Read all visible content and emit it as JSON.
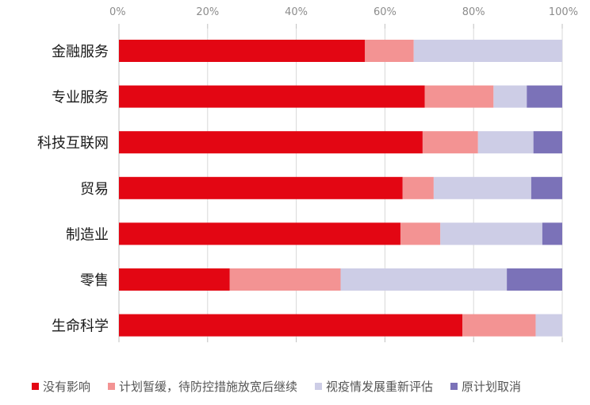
{
  "chart_data": {
    "type": "bar",
    "orientation": "horizontal",
    "stacked": true,
    "categories": [
      "金融服务",
      "专业服务",
      "科技互联网",
      "贸易",
      "制造业",
      "零售",
      "生命科学"
    ],
    "series": [
      {
        "name": "没有影响",
        "color": "#E30613",
        "values": [
          55.5,
          69,
          68.5,
          64,
          63.5,
          25,
          77.5
        ]
      },
      {
        "name": "计划暂缓，待防控措施放宽后继续",
        "color": "#F39393",
        "values": [
          11,
          15.5,
          12.5,
          7,
          9,
          25,
          16.5
        ]
      },
      {
        "name": "视疫情发展重新评估",
        "color": "#CDCDE6",
        "values": [
          33.5,
          7.5,
          12.5,
          22,
          23,
          37.5,
          6
        ]
      },
      {
        "name": "原计划取消",
        "color": "#7B72B8",
        "values": [
          0,
          8,
          6.5,
          7,
          4.5,
          12.5,
          0
        ]
      }
    ],
    "xlim": [
      0,
      100
    ],
    "x_ticks": [
      "0%",
      "20%",
      "40%",
      "60%",
      "80%",
      "100%"
    ],
    "x_tick_values": [
      0,
      20,
      40,
      60,
      80,
      100
    ],
    "x_axis_position": "top",
    "grid": true,
    "legend_position": "bottom",
    "title": "",
    "xlabel": "",
    "ylabel": ""
  }
}
